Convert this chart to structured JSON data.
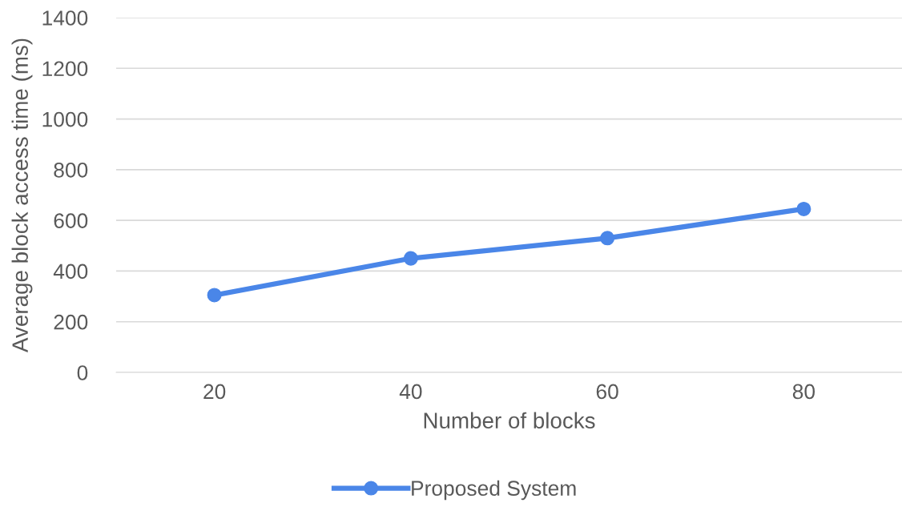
{
  "chart_data": {
    "type": "line",
    "xlabel": "Number of blocks",
    "ylabel": "Average block access time (ms)",
    "categories": [
      "20",
      "40",
      "60",
      "80"
    ],
    "series": [
      {
        "name": "Proposed System",
        "color": "#4a86e8",
        "values": [
          305,
          450,
          530,
          645
        ]
      }
    ],
    "ylim": [
      0,
      1400
    ],
    "yticks": [
      0,
      200,
      400,
      600,
      800,
      1000,
      1200,
      1400
    ],
    "grid": "y",
    "legend": "bottom",
    "marker": "circle",
    "line_style": "solid"
  }
}
